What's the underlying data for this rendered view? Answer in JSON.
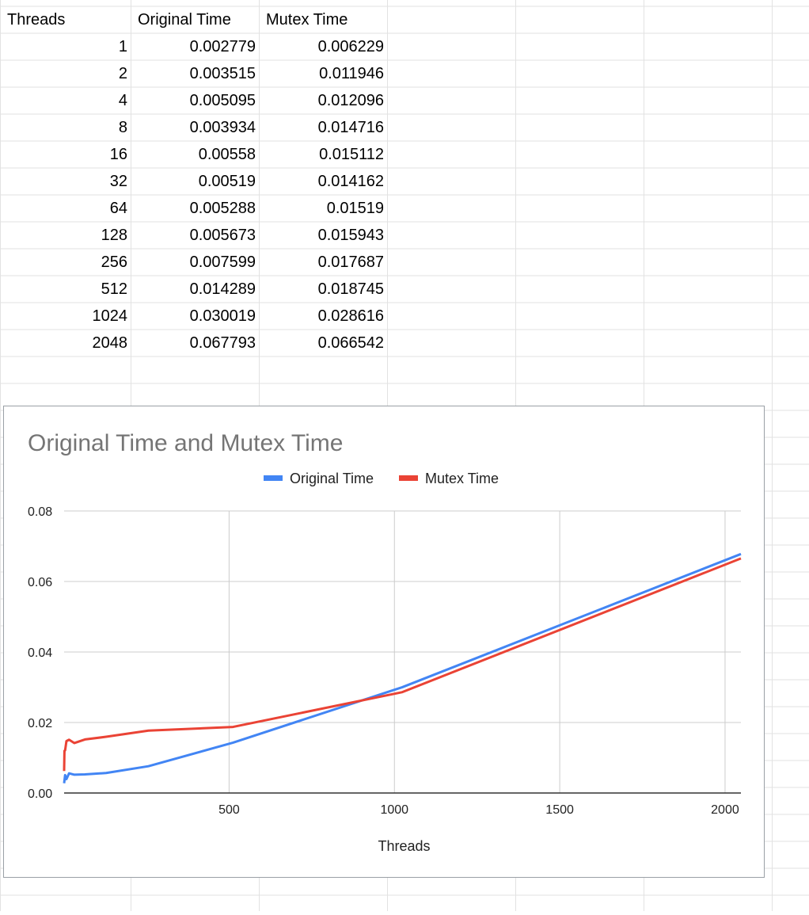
{
  "sheet": {
    "headers": [
      "Threads",
      "Original Time",
      "Mutex Time"
    ],
    "rows": [
      [
        "1",
        "0.002779",
        "0.006229"
      ],
      [
        "2",
        "0.003515",
        "0.011946"
      ],
      [
        "4",
        "0.005095",
        "0.012096"
      ],
      [
        "8",
        "0.003934",
        "0.014716"
      ],
      [
        "16",
        "0.00558",
        "0.015112"
      ],
      [
        "32",
        "0.00519",
        "0.014162"
      ],
      [
        "64",
        "0.005288",
        "0.01519"
      ],
      [
        "128",
        "0.005673",
        "0.015943"
      ],
      [
        "256",
        "0.007599",
        "0.017687"
      ],
      [
        "512",
        "0.014289",
        "0.018745"
      ],
      [
        "1024",
        "0.030019",
        "0.028616"
      ],
      [
        "2048",
        "0.067793",
        "0.066542"
      ]
    ]
  },
  "chart_data": {
    "type": "line",
    "title": "Original Time and Mutex Time",
    "xlabel": "Threads",
    "ylabel": "",
    "x": [
      1,
      2,
      4,
      8,
      16,
      32,
      64,
      128,
      256,
      512,
      1024,
      2048
    ],
    "series": [
      {
        "name": "Original Time",
        "color": "#4285f4",
        "values": [
          0.002779,
          0.003515,
          0.005095,
          0.003934,
          0.00558,
          0.00519,
          0.005288,
          0.005673,
          0.007599,
          0.014289,
          0.030019,
          0.067793
        ]
      },
      {
        "name": "Mutex Time",
        "color": "#ea4335",
        "values": [
          0.006229,
          0.011946,
          0.012096,
          0.014716,
          0.015112,
          0.014162,
          0.01519,
          0.015943,
          0.017687,
          0.018745,
          0.028616,
          0.066542
        ]
      }
    ],
    "xlim": [
      1,
      2048
    ],
    "ylim": [
      0,
      0.08
    ],
    "x_ticks": [
      500,
      1000,
      1500,
      2000
    ],
    "x_tick_labels": [
      "500",
      "1000",
      "1500",
      "2000"
    ],
    "y_ticks": [
      0,
      0.02,
      0.04,
      0.06,
      0.08
    ],
    "y_tick_labels": [
      "0.00",
      "0.02",
      "0.04",
      "0.06",
      "0.08"
    ],
    "grid": true,
    "legend_position": "top"
  }
}
